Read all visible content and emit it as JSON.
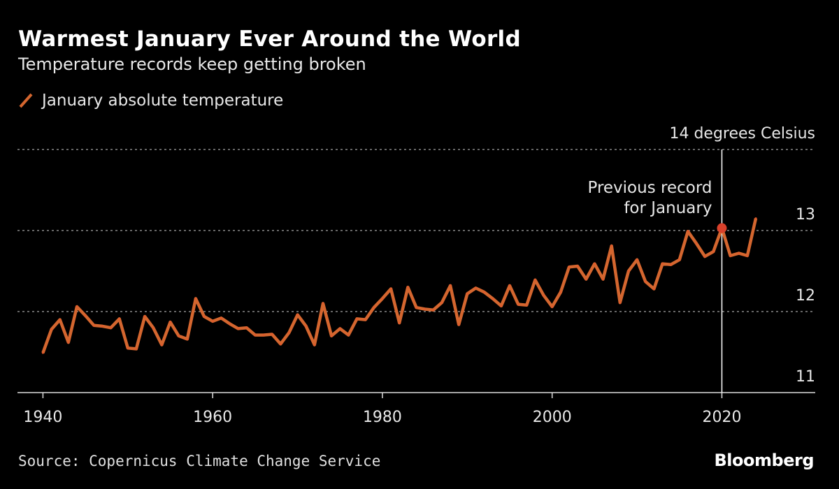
{
  "chart_data": {
    "type": "line",
    "title": "Warmest January Ever Around the World",
    "subtitle": "Temperature records keep getting broken",
    "ylabel": "14 degrees Celsius",
    "xlabel": "",
    "legend": {
      "label": "January absolute temperature",
      "placement": "top-left"
    },
    "xlim": [
      1937,
      2031
    ],
    "ylim": [
      11,
      14
    ],
    "x_ticks": [
      1940,
      1960,
      1980,
      2000,
      2020
    ],
    "y_ticks": [
      11,
      12,
      13
    ],
    "grid": "horizontal dotted",
    "series": [
      {
        "color": "#d4662f",
        "x": [
          1940,
          1941,
          1942,
          1943,
          1944,
          1945,
          1946,
          1947,
          1948,
          1949,
          1950,
          1951,
          1952,
          1953,
          1954,
          1955,
          1956,
          1957,
          1958,
          1959,
          1960,
          1961,
          1962,
          1963,
          1964,
          1965,
          1966,
          1967,
          1968,
          1969,
          1970,
          1971,
          1972,
          1973,
          1974,
          1975,
          1976,
          1977,
          1978,
          1979,
          1980,
          1981,
          1982,
          1983,
          1984,
          1985,
          1986,
          1987,
          1988,
          1989,
          1990,
          1991,
          1992,
          1993,
          1994,
          1995,
          1996,
          1997,
          1998,
          1999,
          2000,
          2001,
          2002,
          2003,
          2004,
          2005,
          2006,
          2007,
          2008,
          2009,
          2010,
          2011,
          2012,
          2013,
          2014,
          2015,
          2016,
          2017,
          2018,
          2019,
          2020,
          2021,
          2022,
          2023,
          2024
        ],
        "values": [
          11.49,
          11.78,
          11.9,
          11.62,
          12.06,
          11.95,
          11.83,
          11.82,
          11.8,
          11.91,
          11.55,
          11.54,
          11.94,
          11.8,
          11.59,
          11.87,
          11.7,
          11.66,
          12.16,
          11.94,
          11.88,
          11.92,
          11.85,
          11.79,
          11.8,
          11.71,
          11.71,
          11.72,
          11.6,
          11.74,
          11.96,
          11.82,
          11.59,
          12.1,
          11.7,
          11.79,
          11.71,
          11.91,
          11.9,
          12.05,
          12.16,
          12.28,
          11.86,
          12.3,
          12.05,
          12.03,
          12.02,
          12.11,
          12.32,
          11.84,
          12.22,
          12.29,
          12.24,
          12.16,
          12.07,
          12.32,
          12.09,
          12.08,
          12.39,
          12.2,
          12.06,
          12.24,
          12.55,
          12.56,
          12.4,
          12.59,
          12.4,
          12.81,
          12.11,
          12.5,
          12.64,
          12.37,
          12.28,
          12.59,
          12.58,
          12.64,
          12.99,
          12.84,
          12.68,
          12.74,
          13.03,
          12.69,
          12.72,
          12.69,
          13.15
        ]
      }
    ],
    "annotations": [
      {
        "x": 2020,
        "value": 13.03,
        "text_line1": "Previous record",
        "text_line2": "for January",
        "marker_color": "#d9412b"
      }
    ]
  },
  "source": "Source: Copernicus Climate Change Service",
  "brand": "Bloomberg"
}
